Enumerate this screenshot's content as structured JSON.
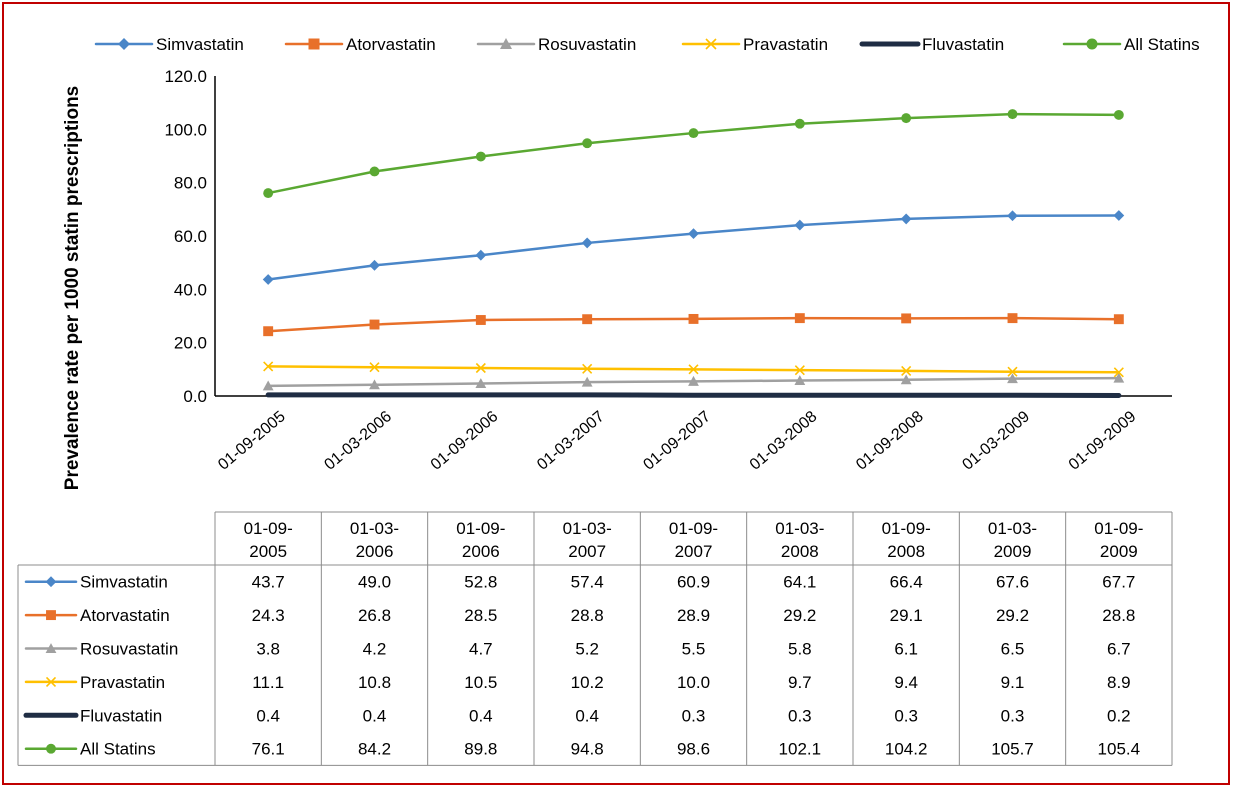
{
  "chart_data": {
    "type": "line",
    "ylabel": "Prevalence rate per 1000 statin prescriptions",
    "xlabel": "",
    "ylim": [
      0,
      120
    ],
    "yticks": [
      "0.0",
      "20.0",
      "40.0",
      "60.0",
      "80.0",
      "100.0",
      "120.0"
    ],
    "categories": [
      "01-09-2005",
      "01-03-2006",
      "01-09-2006",
      "01-03-2007",
      "01-09-2007",
      "01-03-2008",
      "01-09-2008",
      "01-03-2009",
      "01-09-2009"
    ],
    "table_header_top": [
      "01-09-",
      "01-03-",
      "01-09-",
      "01-03-",
      "01-09-",
      "01-03-",
      "01-09-",
      "01-03-",
      "01-09-"
    ],
    "table_header_bottom": [
      "2005",
      "2006",
      "2006",
      "2007",
      "2007",
      "2008",
      "2008",
      "2009",
      "2009"
    ],
    "legend_position": "top",
    "grid": false,
    "series": [
      {
        "name": "Simvastatin",
        "color": "#4a86c8",
        "marker": "diamond",
        "values": [
          43.7,
          49.0,
          52.8,
          57.4,
          60.9,
          64.1,
          66.4,
          67.6,
          67.7
        ],
        "labels": [
          "43.7",
          "49.0",
          "52.8",
          "57.4",
          "60.9",
          "64.1",
          "66.4",
          "67.6",
          "67.7"
        ]
      },
      {
        "name": "Atorvastatin",
        "color": "#e8702a",
        "marker": "square",
        "values": [
          24.3,
          26.8,
          28.5,
          28.8,
          28.9,
          29.2,
          29.1,
          29.2,
          28.8
        ],
        "labels": [
          "24.3",
          "26.8",
          "28.5",
          "28.8",
          "28.9",
          "29.2",
          "29.1",
          "29.2",
          "28.8"
        ]
      },
      {
        "name": "Rosuvastatin",
        "color": "#a0a0a0",
        "marker": "triangle",
        "values": [
          3.8,
          4.2,
          4.7,
          5.2,
          5.5,
          5.8,
          6.1,
          6.5,
          6.7
        ],
        "labels": [
          "3.8",
          "4.2",
          "4.7",
          "5.2",
          "5.5",
          "5.8",
          "6.1",
          "6.5",
          "6.7"
        ]
      },
      {
        "name": "Pravastatin",
        "color": "#ffc000",
        "marker": "x",
        "values": [
          11.1,
          10.8,
          10.5,
          10.2,
          10.0,
          9.7,
          9.4,
          9.1,
          8.9
        ],
        "labels": [
          "11.1",
          "10.8",
          "10.5",
          "10.2",
          "10.0",
          "9.7",
          "9.4",
          "9.1",
          "8.9"
        ]
      },
      {
        "name": "Fluvastatin",
        "color": "#1f2d44",
        "marker": "none",
        "values": [
          0.4,
          0.4,
          0.4,
          0.4,
          0.3,
          0.3,
          0.3,
          0.3,
          0.2
        ],
        "labels": [
          "0.4",
          "0.4",
          "0.4",
          "0.4",
          "0.3",
          "0.3",
          "0.3",
          "0.3",
          "0.2"
        ]
      },
      {
        "name": "All Statins",
        "color": "#5aa832",
        "marker": "circle",
        "values": [
          76.1,
          84.2,
          89.8,
          94.8,
          98.6,
          102.1,
          104.2,
          105.7,
          105.4
        ],
        "labels": [
          "76.1",
          "84.2",
          "89.8",
          "94.8",
          "98.6",
          "102.1",
          "104.2",
          "105.7",
          "105.4"
        ]
      }
    ]
  }
}
